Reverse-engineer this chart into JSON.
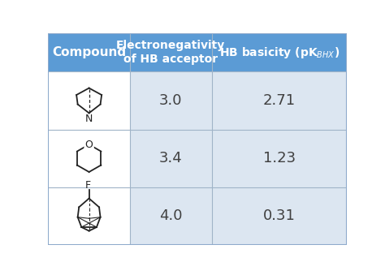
{
  "header_bg": "#5b9bd5",
  "header_text_color": "#ffffff",
  "cell_bg_light": "#dce6f1",
  "col1_header": "Compound",
  "col2_header": "Electronegativity\nof HB acceptor",
  "col3_header": "HB basicity (pK$_{BHX}$)",
  "rows": [
    {
      "en": "3.0",
      "hb": "2.71"
    },
    {
      "en": "3.4",
      "hb": "1.23"
    },
    {
      "en": "4.0",
      "hb": "0.31"
    }
  ],
  "fig_width": 4.74,
  "fig_height": 3.39,
  "dpi": 100,
  "line_color": "#a0b4c8",
  "mol_color": "#222222",
  "text_color": "#404040"
}
